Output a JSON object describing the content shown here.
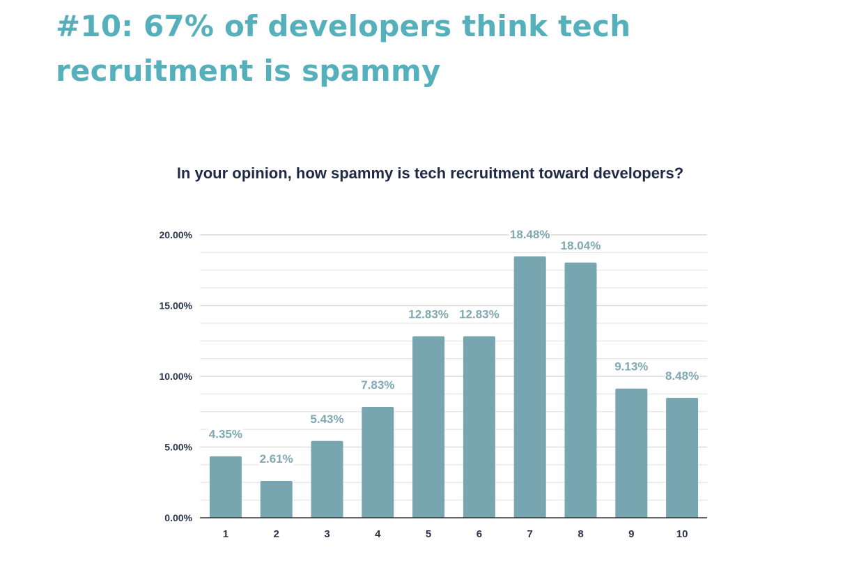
{
  "heading": "#10: 67% of developers think tech recruitment is spammy",
  "colors": {
    "heading": "#55b0bb",
    "bar": "#77a6b1",
    "data_label": "#7ea8b3",
    "axis_text": "#2c3550",
    "gridline": "#dcdcdc",
    "baseline": "#333333"
  },
  "chart_data": {
    "type": "bar",
    "title": "In your opinion, how spammy is tech recruitment toward developers?",
    "xlabel": "",
    "ylabel": "",
    "categories": [
      "1",
      "2",
      "3",
      "4",
      "5",
      "6",
      "7",
      "8",
      "9",
      "10"
    ],
    "values": [
      4.35,
      2.61,
      5.43,
      7.83,
      12.83,
      12.83,
      18.48,
      18.04,
      9.13,
      8.48
    ],
    "data_labels": [
      "4.35%",
      "2.61%",
      "5.43%",
      "7.83%",
      "12.83%",
      "12.83%",
      "18.48%",
      "18.04%",
      "9.13%",
      "8.48%"
    ],
    "ylim": [
      0,
      20
    ],
    "yticks": [
      0,
      5,
      10,
      15,
      20
    ],
    "ytick_labels": [
      "0.00%",
      "5.00%",
      "10.00%",
      "15.00%",
      "20.00%"
    ],
    "minor_gridlines_per_interval": 3,
    "grid": true,
    "legend": "none"
  }
}
